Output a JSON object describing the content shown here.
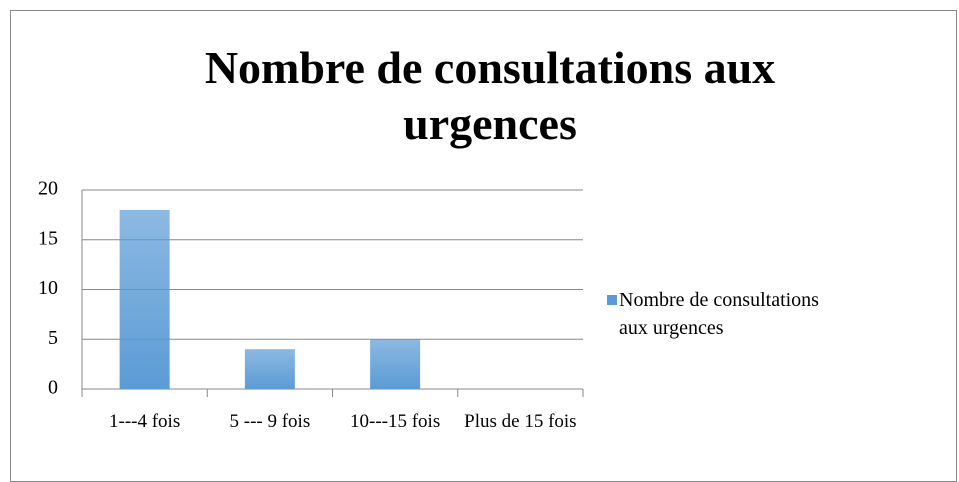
{
  "chart_data": {
    "type": "bar",
    "title": "Nombre de consultations aux urgences",
    "categories": [
      "1---4 fois",
      "5 --- 9 fois",
      "10---15 fois",
      "Plus de 15 fois"
    ],
    "series": [
      {
        "name": "Nombre de consultations aux urgences",
        "color": "#5b9bd5",
        "values": [
          18,
          4,
          5,
          0
        ]
      }
    ],
    "ylim": [
      0,
      20
    ],
    "yticks": [
      0,
      5,
      10,
      15,
      20
    ],
    "grid": true,
    "legend": "right"
  }
}
